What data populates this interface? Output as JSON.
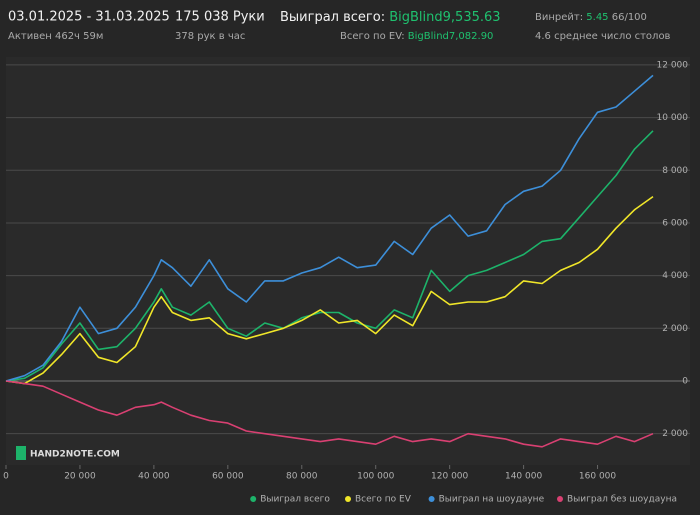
{
  "header": {
    "date_range": "03.01.2025 - 31.03.2025",
    "active": "Активен 462ч 59м",
    "hands": "175 038 Руки",
    "hands_per_hour": "378 рук в час",
    "won_label": "Выиграл всего: ",
    "won_value": "BigBlind9,535.63",
    "ev_label": "Всего по EV: ",
    "ev_value": "BigBlind7,082.90",
    "winrate_label": "Винрейт: ",
    "winrate_value": "5.45",
    "winrate_extra": " 66/100",
    "tables": "4.6 среднее число столов"
  },
  "logo": "HAND2NOTE.COM",
  "chart_data": {
    "type": "line",
    "x": [
      0,
      5000,
      10000,
      15000,
      20000,
      25000,
      30000,
      35000,
      40000,
      42000,
      45000,
      50000,
      55000,
      60000,
      65000,
      70000,
      75000,
      80000,
      85000,
      90000,
      95000,
      100000,
      105000,
      110000,
      115000,
      120000,
      125000,
      130000,
      135000,
      140000,
      145000,
      150000,
      155000,
      160000,
      165000,
      170000,
      175000
    ],
    "xlim": [
      0,
      175000
    ],
    "xticks": [
      0,
      {
        "value": 20000,
        "label": "20 000"
      },
      {
        "value": 40000,
        "label": "40 000"
      },
      {
        "value": 60000,
        "label": "60 000"
      },
      {
        "value": 80000,
        "label": "80 000"
      },
      {
        "value": 100000,
        "label": "100 000"
      },
      {
        "value": 120000,
        "label": "120 000"
      },
      {
        "value": 140000,
        "label": "140 000"
      },
      {
        "value": 160000,
        "label": "160 000"
      }
    ],
    "ylim": [
      -3000,
      12300
    ],
    "yticks": [
      {
        "value": -2000,
        "label": "2 000"
      },
      0,
      {
        "value": 2000,
        "label": "2 000"
      },
      {
        "value": 4000,
        "label": "4 000"
      },
      {
        "value": 6000,
        "label": "6 000"
      },
      {
        "value": 8000,
        "label": "8 000"
      },
      {
        "value": 10000,
        "label": "10 000"
      },
      {
        "value": 12000,
        "label": "12 000"
      }
    ],
    "grid": true,
    "legend": "bottom-right",
    "series": [
      {
        "name": "Выиграл всего",
        "color": "#1db36a",
        "values": [
          0,
          100,
          500,
          1400,
          2200,
          1200,
          1300,
          2000,
          3000,
          3500,
          2800,
          2500,
          3000,
          2000,
          1700,
          2200,
          2000,
          2400,
          2600,
          2600,
          2200,
          2000,
          2700,
          2400,
          4200,
          3400,
          4000,
          4200,
          4500,
          4800,
          5300,
          5400,
          6200,
          7000,
          7800,
          8800,
          9500
        ]
      },
      {
        "name": "Всего по EV",
        "color": "#f0e629",
        "values": [
          0,
          -100,
          300,
          1000,
          1800,
          900,
          700,
          1300,
          2800,
          3200,
          2600,
          2300,
          2400,
          1800,
          1600,
          1800,
          2000,
          2300,
          2700,
          2200,
          2300,
          1800,
          2500,
          2100,
          3400,
          2900,
          3000,
          3000,
          3200,
          3800,
          3700,
          4200,
          4500,
          5000,
          5800,
          6500,
          7000
        ]
      },
      {
        "name": "Выиграл на шоудауне",
        "color": "#3d8fd9",
        "values": [
          0,
          200,
          600,
          1500,
          2800,
          1800,
          2000,
          2800,
          4000,
          4600,
          4300,
          3600,
          4600,
          3500,
          3000,
          3800,
          3800,
          4100,
          4300,
          4700,
          4300,
          4400,
          5300,
          4800,
          5800,
          6300,
          5500,
          5700,
          6700,
          7200,
          7400,
          8000,
          9200,
          10200,
          10400,
          11000,
          11600
        ]
      },
      {
        "name": "Выиграл без шоудауна",
        "color": "#d94072",
        "values": [
          0,
          -100,
          -200,
          -500,
          -800,
          -1100,
          -1300,
          -1000,
          -900,
          -800,
          -1000,
          -1300,
          -1500,
          -1600,
          -1900,
          -2000,
          -2100,
          -2200,
          -2300,
          -2200,
          -2300,
          -2400,
          -2100,
          -2300,
          -2200,
          -2300,
          -2000,
          -2100,
          -2200,
          -2400,
          -2500,
          -2200,
          -2300,
          -2400,
          -2100,
          -2300,
          -2000
        ]
      }
    ]
  }
}
